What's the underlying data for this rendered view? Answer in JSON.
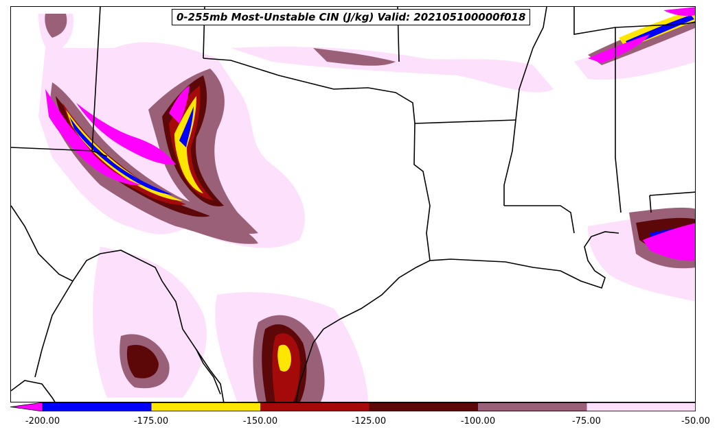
{
  "map": {
    "title": "0-255mb Most-Unstable CIN (J/kg) Valid: 202105100000f018",
    "colorbar": {
      "ticks": [
        "-200.00",
        "-175.00",
        "-150.00",
        "-125.00",
        "-100.00",
        "-75.00",
        "-50.00"
      ],
      "bins": [
        {
          "from": -200,
          "to": -175,
          "color": "#0000ff"
        },
        {
          "from": -175,
          "to": -150,
          "color": "#ffe600"
        },
        {
          "from": -150,
          "to": -125,
          "color": "#a50a0a"
        },
        {
          "from": -125,
          "to": -100,
          "color": "#5c0808"
        },
        {
          "from": -100,
          "to": -75,
          "color": "#9a6078"
        },
        {
          "from": -75,
          "to": -50,
          "color": "#fde0fb"
        }
      ],
      "under_color": "#ff00ff",
      "extend": "min"
    },
    "field_colors": {
      "lightest": "#fde0fb",
      "mauve": "#9a6078",
      "darkred": "#5c0808",
      "red": "#a50a0a",
      "yellow": "#ffe600",
      "blue": "#0000ff",
      "magenta": "#ff00ff"
    }
  }
}
